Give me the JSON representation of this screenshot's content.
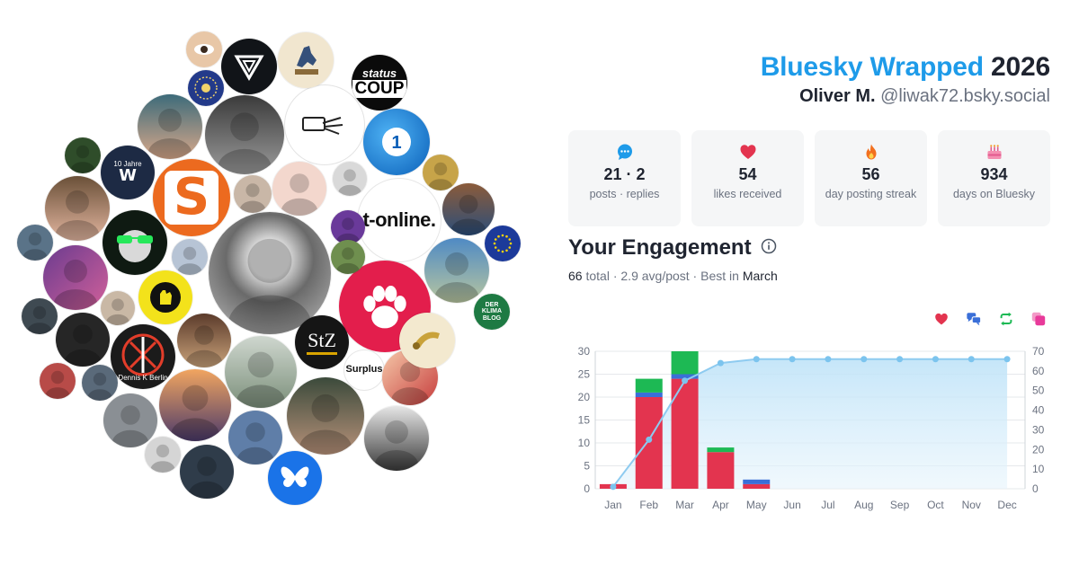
{
  "header": {
    "brand": "Bluesky Wrapped",
    "year": "2026",
    "display_name": "Oliver M.",
    "handle": "@liwak72.bsky.social"
  },
  "stats": [
    {
      "icon": "speech-bubble-icon",
      "value": "21 · 2",
      "label": "posts · replies"
    },
    {
      "icon": "heart-icon",
      "value": "54",
      "label": "likes received"
    },
    {
      "icon": "flame-icon",
      "value": "56",
      "label": "day posting streak"
    },
    {
      "icon": "birthday-cake-icon",
      "value": "934",
      "label": "days on Bluesky"
    }
  ],
  "engagement": {
    "title": "Your Engagement",
    "total_value": "66",
    "total_label": "total",
    "avg": "2.9 avg/post",
    "best_label": "Best in",
    "best_month": "March"
  },
  "legend": [
    {
      "name": "likes",
      "icon": "heart-icon",
      "color": "#e3344f"
    },
    {
      "name": "replies",
      "icon": "speech-bubbles-icon",
      "color": "#3a6fd8"
    },
    {
      "name": "reposts",
      "icon": "repost-icon",
      "color": "#1db954"
    },
    {
      "name": "quotes",
      "icon": "quote-icon",
      "color": "#e83a9a"
    }
  ],
  "bubble_labels": {
    "sz": "S",
    "t_online": "t-online.",
    "status": "status",
    "coup": "COUP",
    "stz": "StZ",
    "surplus": "Surplus",
    "der_klima": "DER KLIMA BLOG",
    "ten_years": "10 Jahre",
    "dennis": "Dennis K Berlin"
  },
  "chart_data": {
    "type": "bar",
    "categories": [
      "Jan",
      "Feb",
      "Mar",
      "Apr",
      "May",
      "Jun",
      "Jul",
      "Aug",
      "Sep",
      "Oct",
      "Nov",
      "Dec"
    ],
    "series": [
      {
        "name": "likes",
        "color": "#e3344f",
        "values": [
          1,
          20,
          24,
          8,
          1,
          0,
          0,
          0,
          0,
          0,
          0,
          0
        ]
      },
      {
        "name": "replies",
        "color": "#3a6fd8",
        "values": [
          0,
          1,
          1,
          0,
          1,
          0,
          0,
          0,
          0,
          0,
          0,
          0
        ]
      },
      {
        "name": "reposts",
        "color": "#1db954",
        "values": [
          0,
          3,
          5,
          1,
          0,
          0,
          0,
          0,
          0,
          0,
          0,
          0
        ]
      },
      {
        "name": "quotes",
        "color": "#e83a9a",
        "values": [
          0,
          0,
          0,
          0,
          0,
          0,
          0,
          0,
          0,
          0,
          0,
          0
        ]
      }
    ],
    "cumulative": {
      "type": "area",
      "axis": "right",
      "color": "#8ecbf0",
      "values": [
        1,
        25,
        55,
        64,
        66,
        66,
        66,
        66,
        66,
        66,
        66,
        66
      ]
    },
    "ylim": [
      0,
      30
    ],
    "yticks": [
      "0",
      "5",
      "10",
      "15",
      "20",
      "25",
      "30"
    ],
    "y2lim": [
      0,
      70
    ],
    "y2ticks": [
      "0",
      "10",
      "20",
      "30",
      "40",
      "50",
      "60",
      "70"
    ],
    "grid": true
  }
}
